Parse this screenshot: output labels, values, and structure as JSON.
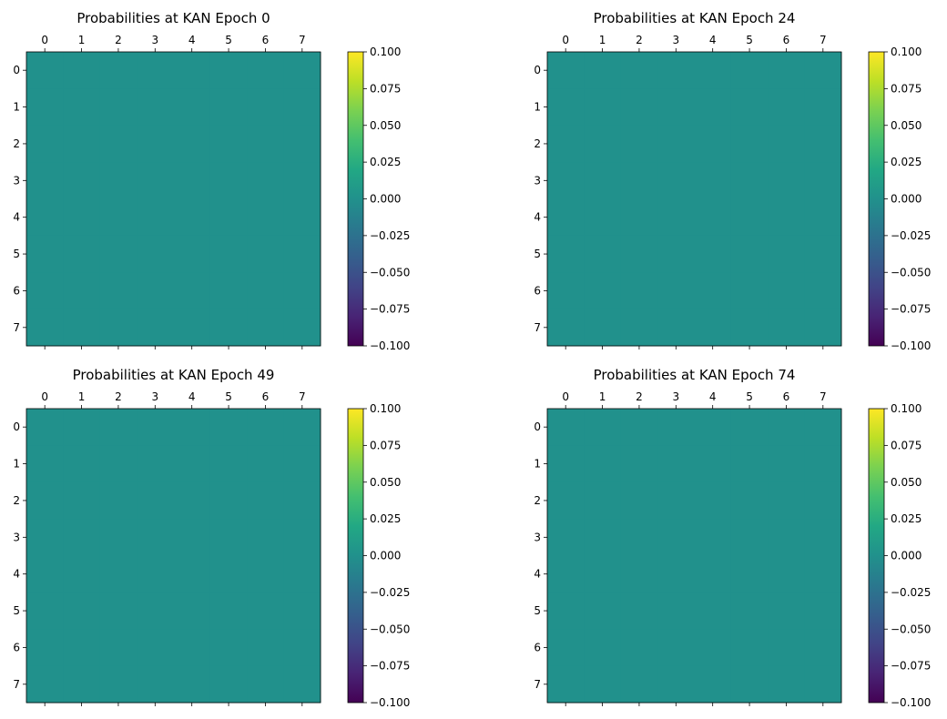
{
  "chart_data": [
    {
      "type": "heatmap",
      "title": "Probabilities at KAN Epoch 0",
      "x_ticks": [
        "0",
        "1",
        "2",
        "3",
        "4",
        "5",
        "6",
        "7"
      ],
      "y_ticks": [
        "0",
        "1",
        "2",
        "3",
        "4",
        "5",
        "6",
        "7"
      ],
      "values": [
        [
          0,
          0,
          0,
          0,
          0,
          0,
          0,
          0
        ],
        [
          0,
          0,
          0,
          0,
          0,
          0,
          0,
          0
        ],
        [
          0,
          0,
          0,
          0,
          0,
          0,
          0,
          0
        ],
        [
          0,
          0,
          0,
          0,
          0,
          0,
          0,
          0
        ],
        [
          0,
          0,
          0,
          0,
          0,
          0,
          0,
          0
        ],
        [
          0,
          0,
          0,
          0,
          0,
          0,
          0,
          0
        ],
        [
          0,
          0,
          0,
          0,
          0,
          0,
          0,
          0
        ],
        [
          0,
          0,
          0,
          0,
          0,
          0,
          0,
          0
        ]
      ],
      "colorbar": {
        "range": [
          -0.1,
          0.1
        ],
        "ticks": [
          "0.100",
          "0.075",
          "0.050",
          "0.025",
          "0.000",
          "−0.025",
          "−0.050",
          "−0.075",
          "−0.100"
        ],
        "colormap": "viridis"
      }
    },
    {
      "type": "heatmap",
      "title": "Probabilities at KAN Epoch 24",
      "x_ticks": [
        "0",
        "1",
        "2",
        "3",
        "4",
        "5",
        "6",
        "7"
      ],
      "y_ticks": [
        "0",
        "1",
        "2",
        "3",
        "4",
        "5",
        "6",
        "7"
      ],
      "values": [
        [
          0,
          0,
          0,
          0,
          0,
          0,
          0,
          0
        ],
        [
          0,
          0,
          0,
          0,
          0,
          0,
          0,
          0
        ],
        [
          0,
          0,
          0,
          0,
          0,
          0,
          0,
          0
        ],
        [
          0,
          0,
          0,
          0,
          0,
          0,
          0,
          0
        ],
        [
          0,
          0,
          0,
          0,
          0,
          0,
          0,
          0
        ],
        [
          0,
          0,
          0,
          0,
          0,
          0,
          0,
          0
        ],
        [
          0,
          0,
          0,
          0,
          0,
          0,
          0,
          0
        ],
        [
          0,
          0,
          0,
          0,
          0,
          0,
          0,
          0
        ]
      ],
      "colorbar": {
        "range": [
          -0.1,
          0.1
        ],
        "ticks": [
          "0.100",
          "0.075",
          "0.050",
          "0.025",
          "0.000",
          "−0.025",
          "−0.050",
          "−0.075",
          "−0.100"
        ],
        "colormap": "viridis"
      }
    },
    {
      "type": "heatmap",
      "title": "Probabilities at KAN Epoch 49",
      "x_ticks": [
        "0",
        "1",
        "2",
        "3",
        "4",
        "5",
        "6",
        "7"
      ],
      "y_ticks": [
        "0",
        "1",
        "2",
        "3",
        "4",
        "5",
        "6",
        "7"
      ],
      "values": [
        [
          0,
          0,
          0,
          0,
          0,
          0,
          0,
          0
        ],
        [
          0,
          0,
          0,
          0,
          0,
          0,
          0,
          0
        ],
        [
          0,
          0,
          0,
          0,
          0,
          0,
          0,
          0
        ],
        [
          0,
          0,
          0,
          0,
          0,
          0,
          0,
          0
        ],
        [
          0,
          0,
          0,
          0,
          0,
          0,
          0,
          0
        ],
        [
          0,
          0,
          0,
          0,
          0,
          0,
          0,
          0
        ],
        [
          0,
          0,
          0,
          0,
          0,
          0,
          0,
          0
        ],
        [
          0,
          0,
          0,
          0,
          0,
          0,
          0,
          0
        ]
      ],
      "colorbar": {
        "range": [
          -0.1,
          0.1
        ],
        "ticks": [
          "0.100",
          "0.075",
          "0.050",
          "0.025",
          "0.000",
          "−0.025",
          "−0.050",
          "−0.075",
          "−0.100"
        ],
        "colormap": "viridis"
      }
    },
    {
      "type": "heatmap",
      "title": "Probabilities at KAN Epoch 74",
      "x_ticks": [
        "0",
        "1",
        "2",
        "3",
        "4",
        "5",
        "6",
        "7"
      ],
      "y_ticks": [
        "0",
        "1",
        "2",
        "3",
        "4",
        "5",
        "6",
        "7"
      ],
      "values": [
        [
          0,
          0,
          0,
          0,
          0,
          0,
          0,
          0
        ],
        [
          0,
          0,
          0,
          0,
          0,
          0,
          0,
          0
        ],
        [
          0,
          0,
          0,
          0,
          0,
          0,
          0,
          0
        ],
        [
          0,
          0,
          0,
          0,
          0,
          0,
          0,
          0
        ],
        [
          0,
          0,
          0,
          0,
          0,
          0,
          0,
          0
        ],
        [
          0,
          0,
          0,
          0,
          0,
          0,
          0,
          0
        ],
        [
          0,
          0,
          0,
          0,
          0,
          0,
          0,
          0
        ],
        [
          0,
          0,
          0,
          0,
          0,
          0,
          0,
          0
        ]
      ],
      "colorbar": {
        "range": [
          -0.1,
          0.1
        ],
        "ticks": [
          "0.100",
          "0.075",
          "0.050",
          "0.025",
          "0.000",
          "−0.025",
          "−0.050",
          "−0.075",
          "−0.100"
        ],
        "colormap": "viridis"
      }
    }
  ]
}
